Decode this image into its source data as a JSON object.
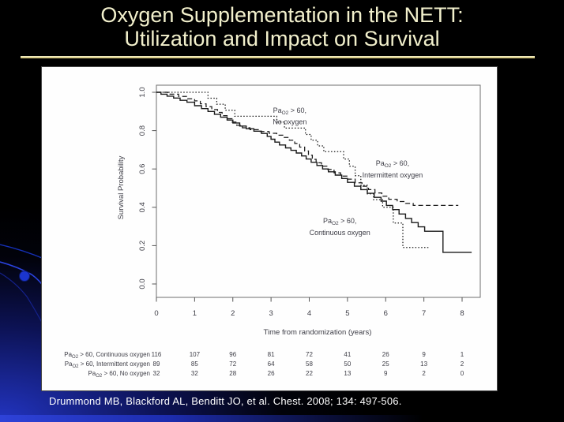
{
  "slide": {
    "title_line1": "Oxygen Supplementation in the NETT:",
    "title_line2": "Utilization and Impact on Survival",
    "citation": "Drummond MB, Blackford AL, Benditt JO, et al. Chest. 2008; 134: 497-506.",
    "colors": {
      "background": "#000000",
      "title_text": "#F2F0CC",
      "underline_gold": "#E8E2A8",
      "accent_blue": "#2238C8",
      "citation_text": "#FFFFFF",
      "panel": "#FEFEFE",
      "figure_ink": "#1a1a1a",
      "figure_text": "#3d3d46"
    }
  },
  "chart_data": {
    "type": "line",
    "subtype": "kaplan-meier-step",
    "title": "",
    "xlabel": "Time from randomization (years)",
    "ylabel": "Survival Probability",
    "xlim": [
      0,
      8.5
    ],
    "ylim": [
      0,
      1.04
    ],
    "grid": "off",
    "legend_position": "inline-annotations",
    "xticks": [
      0,
      1,
      2,
      3,
      4,
      5,
      6,
      7,
      8
    ],
    "yticks": [
      "0.0",
      "0.2",
      "0.4",
      "0.6",
      "0.8",
      "1.0"
    ],
    "series": [
      {
        "id": "no-oxygen",
        "full_name": "PaO2 > 60, No oxygen",
        "label_pa": "Pa",
        "label_sub": "O2",
        "label_rest": " > 60,",
        "label_line2": "No oxygen",
        "style": "dotted",
        "annotation": {
          "x": 3.49,
          "y_line1": 0.905,
          "y_line2": 0.845
        },
        "points": [
          [
            0,
            1.0
          ],
          [
            1.35,
            0.969
          ],
          [
            1.58,
            0.938
          ],
          [
            1.8,
            0.906
          ],
          [
            2.05,
            0.875
          ],
          [
            3.15,
            0.845
          ],
          [
            3.35,
            0.813
          ],
          [
            3.9,
            0.78
          ],
          [
            4.05,
            0.75
          ],
          [
            4.22,
            0.72
          ],
          [
            4.38,
            0.69
          ],
          [
            4.9,
            0.652
          ],
          [
            5.05,
            0.614
          ],
          [
            5.2,
            0.565
          ],
          [
            5.35,
            0.515
          ],
          [
            5.52,
            0.47
          ],
          [
            5.68,
            0.44
          ],
          [
            5.92,
            0.4
          ],
          [
            6.2,
            0.318
          ],
          [
            6.45,
            0.19
          ],
          [
            7.15,
            0.19
          ]
        ]
      },
      {
        "id": "intermittent-oxygen",
        "full_name": "PaO2 > 60, Intermittent oxygen",
        "label_pa": "Pa",
        "label_sub": "O2",
        "label_rest": " > 60,",
        "label_line2": "Intermittent oxygen",
        "style": "dashed",
        "annotation": {
          "x": 6.18,
          "y_line1": 0.63,
          "y_line2": 0.568
        },
        "points": [
          [
            0,
            1.0
          ],
          [
            0.3,
            0.99
          ],
          [
            0.58,
            0.978
          ],
          [
            0.82,
            0.966
          ],
          [
            1.0,
            0.955
          ],
          [
            1.15,
            0.94
          ],
          [
            1.3,
            0.925
          ],
          [
            1.45,
            0.91
          ],
          [
            1.6,
            0.895
          ],
          [
            1.72,
            0.878
          ],
          [
            1.85,
            0.862
          ],
          [
            1.98,
            0.845
          ],
          [
            2.1,
            0.828
          ],
          [
            2.25,
            0.815
          ],
          [
            2.45,
            0.805
          ],
          [
            2.7,
            0.795
          ],
          [
            2.95,
            0.786
          ],
          [
            3.15,
            0.776
          ],
          [
            3.32,
            0.764
          ],
          [
            3.48,
            0.75
          ],
          [
            3.62,
            0.733
          ],
          [
            3.75,
            0.714
          ],
          [
            3.88,
            0.694
          ],
          [
            3.98,
            0.672
          ],
          [
            4.08,
            0.65
          ],
          [
            4.18,
            0.632
          ],
          [
            4.32,
            0.615
          ],
          [
            4.48,
            0.598
          ],
          [
            4.65,
            0.58
          ],
          [
            4.82,
            0.563
          ],
          [
            5.0,
            0.547
          ],
          [
            5.2,
            0.528
          ],
          [
            5.38,
            0.51
          ],
          [
            5.55,
            0.492
          ],
          [
            5.72,
            0.475
          ],
          [
            5.9,
            0.458
          ],
          [
            6.08,
            0.442
          ],
          [
            6.3,
            0.43
          ],
          [
            6.52,
            0.42
          ],
          [
            6.72,
            0.41
          ],
          [
            7.9,
            0.41
          ]
        ]
      },
      {
        "id": "continuous-oxygen",
        "full_name": "PaO2 > 60, Continuous oxygen",
        "label_pa": "Pa",
        "label_sub": "O2",
        "label_rest": " > 60,",
        "label_line2": "Continuous oxygen",
        "style": "solid",
        "annotation": {
          "x": 4.8,
          "y_line1": 0.329,
          "y_line2": 0.267
        },
        "points": [
          [
            0,
            1.0
          ],
          [
            0.12,
            0.99
          ],
          [
            0.28,
            0.98
          ],
          [
            0.45,
            0.97
          ],
          [
            0.62,
            0.958
          ],
          [
            0.8,
            0.948
          ],
          [
            1.0,
            0.93
          ],
          [
            1.18,
            0.915
          ],
          [
            1.35,
            0.9
          ],
          [
            1.52,
            0.885
          ],
          [
            1.68,
            0.87
          ],
          [
            1.85,
            0.855
          ],
          [
            2.0,
            0.84
          ],
          [
            2.18,
            0.824
          ],
          [
            2.35,
            0.81
          ],
          [
            2.55,
            0.797
          ],
          [
            2.75,
            0.785
          ],
          [
            2.9,
            0.77
          ],
          [
            3.0,
            0.755
          ],
          [
            3.1,
            0.74
          ],
          [
            3.22,
            0.725
          ],
          [
            3.38,
            0.71
          ],
          [
            3.52,
            0.697
          ],
          [
            3.66,
            0.683
          ],
          [
            3.8,
            0.668
          ],
          [
            3.92,
            0.652
          ],
          [
            4.05,
            0.635
          ],
          [
            4.2,
            0.618
          ],
          [
            4.35,
            0.6
          ],
          [
            4.5,
            0.585
          ],
          [
            4.68,
            0.568
          ],
          [
            4.85,
            0.55
          ],
          [
            5.0,
            0.53
          ],
          [
            5.18,
            0.51
          ],
          [
            5.35,
            0.492
          ],
          [
            5.52,
            0.473
          ],
          [
            5.7,
            0.452
          ],
          [
            5.88,
            0.432
          ],
          [
            6.02,
            0.41
          ],
          [
            6.18,
            0.388
          ],
          [
            6.35,
            0.365
          ],
          [
            6.52,
            0.342
          ],
          [
            6.68,
            0.32
          ],
          [
            6.85,
            0.298
          ],
          [
            7.02,
            0.275
          ],
          [
            7.45,
            0.275
          ],
          [
            7.5,
            0.165
          ],
          [
            8.25,
            0.165
          ]
        ]
      }
    ],
    "risk_table": {
      "rows": [
        {
          "label_pa": "Pa",
          "label_sub": "O2",
          "label_rest": " > 60, Continuous oxygen",
          "full_label": "PaO2 > 60, Continuous oxygen",
          "counts": [
            116,
            107,
            96,
            81,
            72,
            41,
            26,
            9,
            1
          ]
        },
        {
          "label_pa": "Pa",
          "label_sub": "O2",
          "label_rest": " > 60, Intermittent oxygen",
          "full_label": "PaO2 > 60, Intermittent oxygen",
          "counts": [
            89,
            85,
            72,
            64,
            58,
            50,
            25,
            13,
            2
          ]
        },
        {
          "label_pa": "Pa",
          "label_sub": "O2",
          "label_rest": " > 60, No oxygen",
          "full_label": "PaO2 > 60, No oxygen",
          "counts": [
            32,
            32,
            28,
            26,
            22,
            13,
            9,
            2,
            0
          ]
        }
      ]
    }
  }
}
